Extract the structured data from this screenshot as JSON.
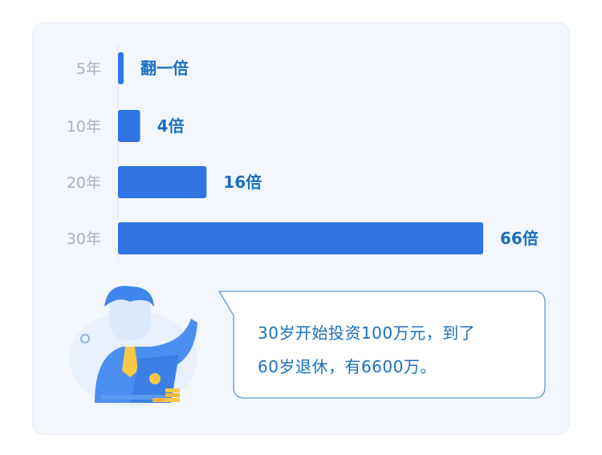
{
  "chart_data": {
    "type": "bar",
    "orientation": "horizontal",
    "categories": [
      "5年",
      "10年",
      "20年",
      "30年"
    ],
    "values": [
      2,
      4,
      16,
      66
    ],
    "data_labels": [
      "翻一倍",
      "4倍",
      "16倍",
      "66倍"
    ],
    "title": "",
    "xlabel": "",
    "ylabel": "",
    "xlim": [
      0,
      66
    ],
    "grid": false,
    "legend": "none",
    "bar_color": "#2f74e0",
    "label_color": "#1a6fc0",
    "category_color": "#aab0ba"
  },
  "callout": {
    "lines": [
      "30岁开始投资100万元，到了",
      "60岁退休，有6600万。"
    ],
    "border_color": "#5b9bd5"
  },
  "illustration": {
    "icon": "businessman-with-laptop-and-coins-icon"
  }
}
